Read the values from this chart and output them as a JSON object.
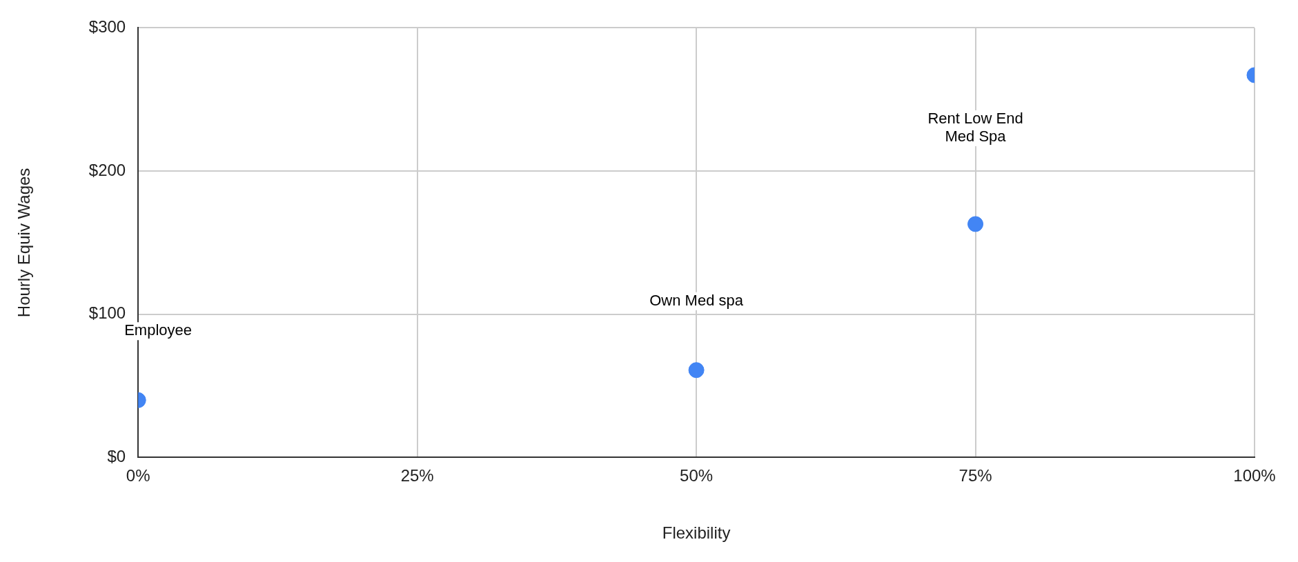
{
  "chart_data": {
    "type": "scatter",
    "xlabel": "Flexibility",
    "ylabel": "Hourly Equiv Wages",
    "x": [
      0,
      50,
      75,
      100
    ],
    "series": [
      {
        "color": "#4285f4",
        "values": [
          40,
          61,
          163,
          267
        ]
      }
    ],
    "xlim": [
      0,
      100
    ],
    "xticks": [
      {
        "value": 0,
        "label": "0%"
      },
      {
        "value": 25,
        "label": "25%"
      },
      {
        "value": 50,
        "label": "50%"
      },
      {
        "value": 75,
        "label": "75%"
      },
      {
        "value": 100,
        "label": "100%"
      }
    ],
    "ylim": [
      0,
      300
    ],
    "yticks": [
      {
        "value": 0,
        "label": "$0"
      },
      {
        "value": 100,
        "label": "$100"
      },
      {
        "value": 200,
        "label": "$200"
      },
      {
        "value": 300,
        "label": "$300"
      }
    ],
    "annotations": [
      "Employee",
      "Own Med spa",
      "Rent Low End\nMed Spa"
    ],
    "grid": true,
    "marker": "circle",
    "legend": false
  }
}
